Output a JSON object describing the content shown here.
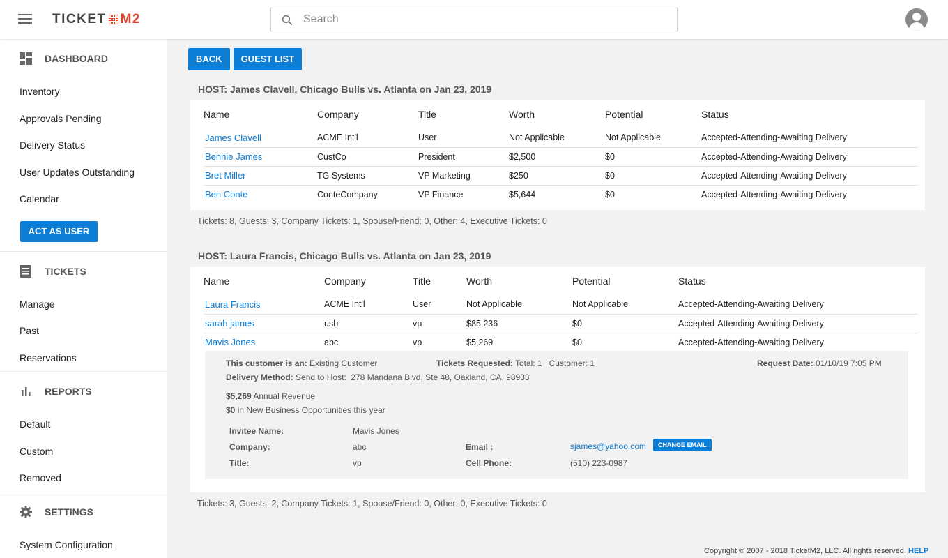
{
  "app": {
    "logo_left": "TICKET",
    "logo_right": "M2"
  },
  "search": {
    "placeholder": "Search",
    "value": ""
  },
  "sidebar": {
    "dashboard": {
      "title": "DASHBOARD",
      "items": [
        "Inventory",
        "Approvals Pending",
        "Delivery Status",
        "User Updates Outstanding",
        "Calendar"
      ],
      "act_as_user": "ACT AS USER"
    },
    "tickets": {
      "title": "TICKETS",
      "items": [
        "Manage",
        "Past",
        "Reservations"
      ]
    },
    "reports": {
      "title": "REPORTS",
      "items": [
        "Default",
        "Custom",
        "Removed"
      ]
    },
    "settings": {
      "title": "SETTINGS",
      "items": [
        "System Configuration"
      ]
    }
  },
  "toolbar": {
    "back": "BACK",
    "guest_list": "GUEST LIST"
  },
  "hosts": [
    {
      "title": "HOST: James Clavell, Chicago Bulls vs. Atlanta on Jan 23, 2019",
      "columns": [
        "Name",
        "Company",
        "Title",
        "Worth",
        "Potential",
        "Status"
      ],
      "rows": [
        [
          "James Clavell",
          "ACME Int'l",
          "User",
          "Not Applicable",
          "Not Applicable",
          "Accepted-Attending-Awaiting Delivery"
        ],
        [
          "Bennie James",
          "CustCo",
          "President",
          "$2,500",
          "$0",
          "Accepted-Attending-Awaiting Delivery"
        ],
        [
          "Bret Miller",
          "TG Systems",
          "VP Marketing",
          "$250",
          "$0",
          "Accepted-Attending-Awaiting Delivery"
        ],
        [
          "Ben Conte",
          "ConteCompany",
          "VP Finance",
          "$5,644",
          "$0",
          "Accepted-Attending-Awaiting Delivery"
        ]
      ],
      "summary": "Tickets: 8, Guests: 3, Company Tickets: 1, Spouse/Friend: 0, Other: 4, Executive Tickets: 0"
    },
    {
      "title": "HOST: Laura Francis, Chicago Bulls vs. Atlanta on Jan 23, 2019",
      "columns": [
        "Name",
        "Company",
        "Title",
        "Worth",
        "Potential",
        "Status"
      ],
      "rows": [
        [
          "Laura Francis",
          "ACME Int'l",
          "User",
          "Not Applicable",
          "Not Applicable",
          "Accepted-Attending-Awaiting Delivery"
        ],
        [
          "sarah james",
          "usb",
          "vp",
          "$85,236",
          "$0",
          "Accepted-Attending-Awaiting Delivery"
        ],
        [
          "Mavis Jones",
          "abc",
          "vp",
          "$5,269",
          "$0",
          "Accepted-Attending-Awaiting Delivery"
        ]
      ],
      "summary": "Tickets: 3, Guests: 2, Company Tickets: 1, Spouse/Friend: 0, Other: 0, Executive Tickets: 0",
      "detail": {
        "customer_label": "This customer is an:",
        "customer_value": "Existing Customer",
        "tickets_label": "Tickets Requested:",
        "tickets_value": "Total: 1   Customer: 1",
        "request_label": "Request Date:",
        "request_value": "01/10/19 7:05 PM",
        "delivery_label": "Delivery Method:",
        "delivery_value": "Send to Host:  278 Mandana Blvd, Ste 48, Oakland, CA, 98933",
        "revenue_amount": "$5,269",
        "revenue_text": "Annual Revenue",
        "opps_amount": "$0",
        "opps_text": "in New Business Opportunities this year",
        "invitee_label": "Invitee Name:",
        "invitee_value": "Mavis Jones",
        "company_label": "Company:",
        "company_value": "abc",
        "title_label": "Title:",
        "title_value": "vp",
        "email_label": "Email :",
        "email_value": "sjames@yahoo.com",
        "change_email": "CHANGE EMAIL",
        "cell_label": "Cell Phone:",
        "cell_value": "(510) 223-0987"
      }
    }
  ],
  "footer": {
    "copyright": "Copyright © 2007 - 2018 TicketM2, LLC. All rights reserved.",
    "help": "HELP"
  },
  "colors": {
    "accent": "#0d7ed6",
    "logo_red": "#e0442b"
  }
}
